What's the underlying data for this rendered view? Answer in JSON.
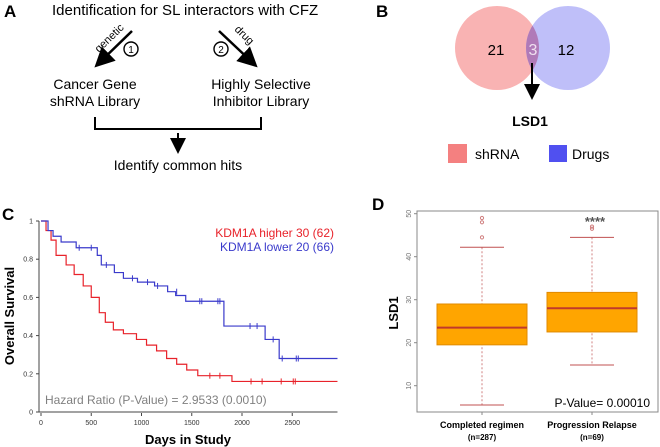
{
  "panels": {
    "a": {
      "label": "A",
      "title": "Identification for SL interactors with CFZ",
      "left_arrow_label": "genetic",
      "left_step": "1",
      "right_arrow_label": "drug",
      "right_step": "2",
      "left_box": [
        "Cancer Gene",
        "shRNA Library"
      ],
      "right_box": [
        "Highly Selective",
        "Inhibitor Library"
      ],
      "result": "Identify common hits"
    },
    "b": {
      "label": "B",
      "left_only": "21",
      "overlap": "3",
      "right_only": "12",
      "hit": "LSD1",
      "legend": [
        {
          "name": "shRNA",
          "color": "#f48080"
        },
        {
          "name": "Drugs",
          "color": "#5050f0"
        }
      ],
      "colors": {
        "left": "#f9b3b3",
        "right": "#b8b8f8",
        "overlap": "#b07ab8"
      }
    },
    "c": {
      "label": "C"
    },
    "d": {
      "label": "D"
    }
  },
  "chart_data": [
    {
      "type": "line",
      "subtype": "kaplan-meier",
      "xlabel": "Days in Study",
      "ylabel": "Overall Survival",
      "xlim": [
        0,
        2950
      ],
      "ylim": [
        0,
        1
      ],
      "xticks": [
        "0",
        "500",
        "1000",
        "1500",
        "2000",
        "2500"
      ],
      "yticks": [
        "0",
        "0.2",
        "0.4",
        "0.6",
        "0.8",
        "1"
      ],
      "annotation": "Hazard Ratio (P-Value) = 2.9533 (0.0010)",
      "series": [
        {
          "name": "KDM1A higher 30 (62)",
          "color": "#e8222a",
          "steps": [
            [
              0,
              1
            ],
            [
              50,
              0.95
            ],
            [
              100,
              0.9
            ],
            [
              150,
              0.82
            ],
            [
              250,
              0.77
            ],
            [
              330,
              0.72
            ],
            [
              420,
              0.66
            ],
            [
              500,
              0.6
            ],
            [
              580,
              0.52
            ],
            [
              640,
              0.47
            ],
            [
              720,
              0.43
            ],
            [
              820,
              0.41
            ],
            [
              950,
              0.38
            ],
            [
              1050,
              0.35
            ],
            [
              1150,
              0.32
            ],
            [
              1250,
              0.28
            ],
            [
              1350,
              0.25
            ],
            [
              1450,
              0.22
            ],
            [
              1560,
              0.19
            ],
            [
              1900,
              0.16
            ],
            [
              2950,
              0.16
            ]
          ],
          "censored": [
            [
              1680,
              0.19
            ],
            [
              1780,
              0.19
            ],
            [
              2090,
              0.16
            ],
            [
              2200,
              0.16
            ],
            [
              2390,
              0.16
            ],
            [
              2510,
              0.16
            ],
            [
              2530,
              0.16
            ]
          ]
        },
        {
          "name": "KDM1A lower 20 (66)",
          "color": "#3a3acb",
          "steps": [
            [
              0,
              1
            ],
            [
              70,
              0.95
            ],
            [
              120,
              0.92
            ],
            [
              200,
              0.89
            ],
            [
              350,
              0.86
            ],
            [
              560,
              0.82
            ],
            [
              600,
              0.77
            ],
            [
              730,
              0.73
            ],
            [
              820,
              0.7
            ],
            [
              960,
              0.68
            ],
            [
              1130,
              0.66
            ],
            [
              1260,
              0.63
            ],
            [
              1340,
              0.61
            ],
            [
              1440,
              0.58
            ],
            [
              1820,
              0.45
            ],
            [
              2230,
              0.38
            ],
            [
              2370,
              0.28
            ],
            [
              2950,
              0.28
            ]
          ],
          "censored": [
            [
              380,
              0.86
            ],
            [
              500,
              0.86
            ],
            [
              650,
              0.77
            ],
            [
              910,
              0.7
            ],
            [
              1060,
              0.68
            ],
            [
              1160,
              0.66
            ],
            [
              1350,
              0.63
            ],
            [
              1580,
              0.58
            ],
            [
              1600,
              0.58
            ],
            [
              1760,
              0.58
            ],
            [
              1780,
              0.58
            ],
            [
              2080,
              0.45
            ],
            [
              2150,
              0.45
            ],
            [
              2310,
              0.38
            ],
            [
              2400,
              0.28
            ],
            [
              2540,
              0.28
            ],
            [
              2560,
              0.28
            ]
          ]
        }
      ]
    },
    {
      "type": "box",
      "ylabel": "LSD1",
      "ylim": [
        3,
        50
      ],
      "yticks": [
        "10",
        "20",
        "30",
        "40",
        "50"
      ],
      "categories": [
        "Completed regimen",
        "Progression Relapse"
      ],
      "category_n": [
        "(n=287)",
        "(n=69)"
      ],
      "annotation": "P-Value= 0.00010",
      "significance": "****",
      "box_color": "#ffa500",
      "median_color": "#c0392b",
      "boxes": [
        {
          "min": 5.5,
          "q1": 19.5,
          "median": 23.5,
          "q3": 29,
          "max": 42.2,
          "outliers": [
            44.5,
            48,
            49
          ]
        },
        {
          "min": 14.8,
          "q1": 22.5,
          "median": 28,
          "q3": 31.7,
          "max": 44.5,
          "outliers": [
            46.5,
            47
          ]
        }
      ]
    }
  ]
}
